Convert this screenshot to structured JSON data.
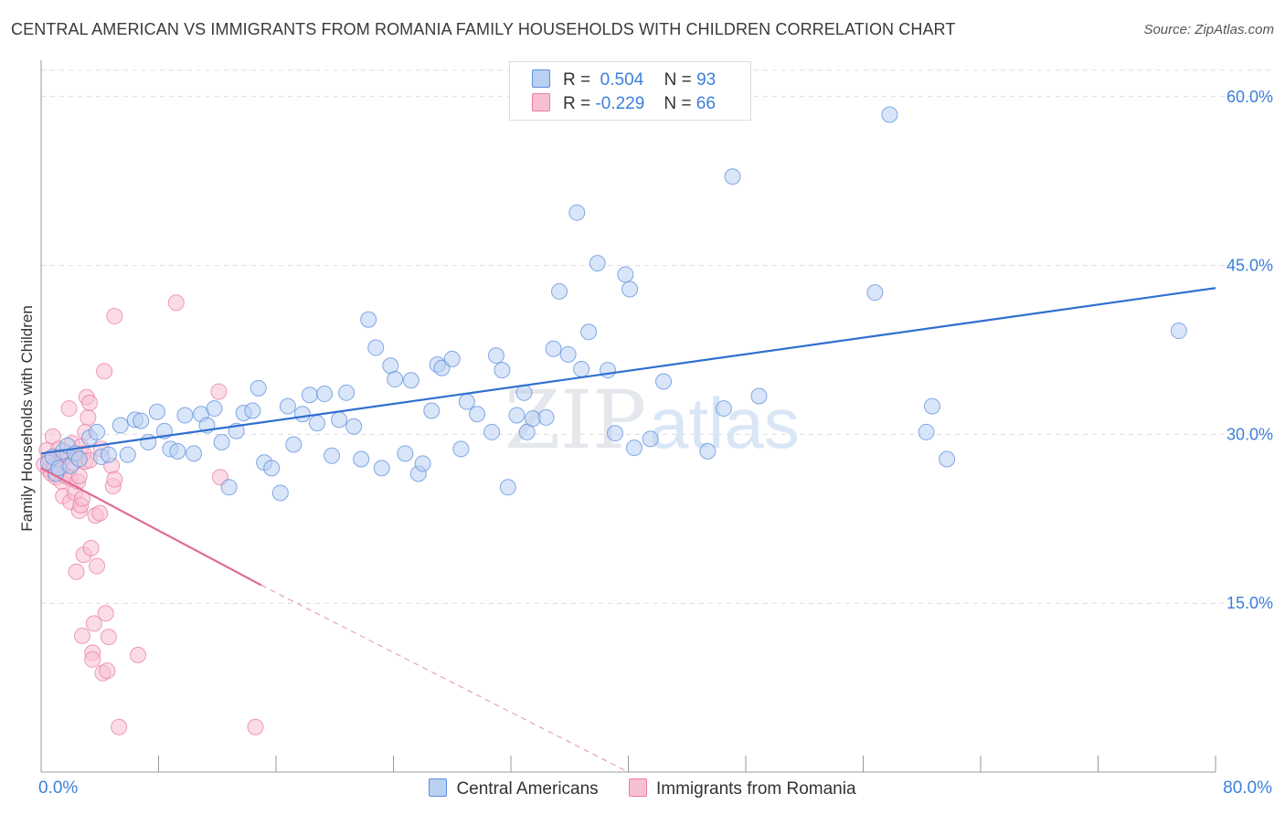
{
  "title": "CENTRAL AMERICAN VS IMMIGRANTS FROM ROMANIA FAMILY HOUSEHOLDS WITH CHILDREN CORRELATION CHART",
  "source": "Source: ZipAtlas.com",
  "watermark": {
    "zip": "ZIP",
    "atlas": "atlas"
  },
  "legend": {
    "r_label": "R =",
    "n_label": "N =",
    "rows": [
      {
        "r": "0.504",
        "n": "93",
        "color": "#5b8fdc",
        "fill": "#b9d0f2"
      },
      {
        "r": "-0.229",
        "n": "66",
        "color": "#e97ca0",
        "fill": "#f7c0d2"
      }
    ]
  },
  "bottom_legend": [
    "Central Americans",
    "Immigrants from Romania"
  ],
  "x_axis": {
    "min_label": "0.0%",
    "max_label": "80.0%"
  },
  "y_axis": {
    "label": "Family Households with Children",
    "ticks": [
      "60.0%",
      "45.0%",
      "30.0%",
      "15.0%"
    ]
  },
  "chart_data": {
    "type": "scatter",
    "title": "CENTRAL AMERICAN VS IMMIGRANTS FROM ROMANIA FAMILY HOUSEHOLDS WITH CHILDREN CORRELATION CHART",
    "xlabel": "",
    "ylabel": "Family Households with Children",
    "xlim": [
      0,
      80
    ],
    "ylim": [
      0,
      62.5
    ],
    "y_ticks": [
      15,
      30,
      45,
      60
    ],
    "x_tick_labels": [
      "0.0%",
      "80.0%"
    ],
    "grid": "horizontal dashed",
    "legend_position": "top-center",
    "series": [
      {
        "name": "Central Americans",
        "color": "#5b8fdc",
        "fill": "#b9d0f2",
        "r": 0.504,
        "n": 93,
        "trend": {
          "x0": 0,
          "y0": 28.3,
          "x1": 80,
          "y1": 43.0,
          "style": "solid"
        },
        "points": [
          [
            0.5,
            27.5
          ],
          [
            0.8,
            28.0
          ],
          [
            1.0,
            26.5
          ],
          [
            1.2,
            27.0
          ],
          [
            1.5,
            28.5
          ],
          [
            1.8,
            29.0
          ],
          [
            2.0,
            27.2
          ],
          [
            2.3,
            28.3
          ],
          [
            2.6,
            27.8
          ],
          [
            3.3,
            29.7
          ],
          [
            3.8,
            30.2
          ],
          [
            4.1,
            28.0
          ],
          [
            4.6,
            28.2
          ],
          [
            5.4,
            30.8
          ],
          [
            5.9,
            28.2
          ],
          [
            6.4,
            31.3
          ],
          [
            6.8,
            31.2
          ],
          [
            7.3,
            29.3
          ],
          [
            7.9,
            32.0
          ],
          [
            8.4,
            30.3
          ],
          [
            8.8,
            28.7
          ],
          [
            9.3,
            28.5
          ],
          [
            9.8,
            31.7
          ],
          [
            10.4,
            28.3
          ],
          [
            10.9,
            31.8
          ],
          [
            11.3,
            30.8
          ],
          [
            11.8,
            32.3
          ],
          [
            12.3,
            29.3
          ],
          [
            12.8,
            25.3
          ],
          [
            13.3,
            30.3
          ],
          [
            13.8,
            31.9
          ],
          [
            14.4,
            32.1
          ],
          [
            14.8,
            34.1
          ],
          [
            15.2,
            27.5
          ],
          [
            15.7,
            27.0
          ],
          [
            16.3,
            24.8
          ],
          [
            16.8,
            32.5
          ],
          [
            17.2,
            29.1
          ],
          [
            17.8,
            31.8
          ],
          [
            18.3,
            33.5
          ],
          [
            18.8,
            31.0
          ],
          [
            19.3,
            33.6
          ],
          [
            19.8,
            28.1
          ],
          [
            20.3,
            31.3
          ],
          [
            20.8,
            33.7
          ],
          [
            21.3,
            30.7
          ],
          [
            21.8,
            27.8
          ],
          [
            22.3,
            40.2
          ],
          [
            22.8,
            37.7
          ],
          [
            23.2,
            27.0
          ],
          [
            23.8,
            36.1
          ],
          [
            24.1,
            34.9
          ],
          [
            24.8,
            28.3
          ],
          [
            25.2,
            34.8
          ],
          [
            25.7,
            26.5
          ],
          [
            26.0,
            27.4
          ],
          [
            26.6,
            32.1
          ],
          [
            27.0,
            36.2
          ],
          [
            27.3,
            35.9
          ],
          [
            28.0,
            36.7
          ],
          [
            28.6,
            28.7
          ],
          [
            29.0,
            32.9
          ],
          [
            29.7,
            31.8
          ],
          [
            30.7,
            30.2
          ],
          [
            31.0,
            37.0
          ],
          [
            31.4,
            35.7
          ],
          [
            31.8,
            25.3
          ],
          [
            32.4,
            31.7
          ],
          [
            32.9,
            33.7
          ],
          [
            33.1,
            30.2
          ],
          [
            33.5,
            31.4
          ],
          [
            34.4,
            31.5
          ],
          [
            34.9,
            37.6
          ],
          [
            35.3,
            42.7
          ],
          [
            35.9,
            37.1
          ],
          [
            36.5,
            49.7
          ],
          [
            36.8,
            35.8
          ],
          [
            37.3,
            39.1
          ],
          [
            37.9,
            45.2
          ],
          [
            38.6,
            35.7
          ],
          [
            39.1,
            30.1
          ],
          [
            39.8,
            44.2
          ],
          [
            40.1,
            42.9
          ],
          [
            40.4,
            28.8
          ],
          [
            41.5,
            29.6
          ],
          [
            42.4,
            34.7
          ],
          [
            45.4,
            28.5
          ],
          [
            46.5,
            32.3
          ],
          [
            47.1,
            52.9
          ],
          [
            48.9,
            33.4
          ],
          [
            56.8,
            42.6
          ],
          [
            57.8,
            58.4
          ],
          [
            60.3,
            30.2
          ],
          [
            60.7,
            32.5
          ],
          [
            61.7,
            27.8
          ],
          [
            77.5,
            39.2
          ]
        ]
      },
      {
        "name": "Immigrants from Romania",
        "color": "#e97ca0",
        "fill": "#f7c0d2",
        "r": -0.229,
        "n": 66,
        "trend": {
          "x0": 0,
          "y0": 27.0,
          "x1": 15,
          "y1": 16.6,
          "style": "solid",
          "extend_to": [
            40,
            0
          ],
          "extend_style": "dashed"
        },
        "points": [
          [
            0.2,
            27.3
          ],
          [
            0.4,
            28.6
          ],
          [
            0.5,
            26.9
          ],
          [
            0.6,
            27.8
          ],
          [
            0.7,
            26.5
          ],
          [
            0.8,
            29.8
          ],
          [
            0.9,
            27.2
          ],
          [
            1.0,
            26.2
          ],
          [
            1.1,
            28.0
          ],
          [
            1.2,
            28.7
          ],
          [
            1.3,
            27.5
          ],
          [
            1.3,
            26.8
          ],
          [
            1.4,
            25.8
          ],
          [
            1.5,
            24.5
          ],
          [
            1.6,
            27.9
          ],
          [
            1.7,
            26.3
          ],
          [
            1.8,
            28.2
          ],
          [
            1.9,
            32.3
          ],
          [
            2.0,
            24.0
          ],
          [
            2.0,
            26.1
          ],
          [
            2.1,
            29.2
          ],
          [
            2.2,
            27.5
          ],
          [
            2.3,
            24.8
          ],
          [
            2.4,
            28.0
          ],
          [
            2.4,
            17.8
          ],
          [
            2.5,
            25.8
          ],
          [
            2.6,
            23.2
          ],
          [
            2.6,
            26.3
          ],
          [
            2.7,
            23.7
          ],
          [
            2.7,
            28.9
          ],
          [
            2.8,
            24.3
          ],
          [
            2.8,
            12.1
          ],
          [
            2.9,
            19.3
          ],
          [
            2.9,
            28.3
          ],
          [
            3.0,
            30.2
          ],
          [
            3.0,
            27.6
          ],
          [
            3.1,
            33.3
          ],
          [
            3.2,
            31.5
          ],
          [
            3.3,
            32.8
          ],
          [
            3.3,
            27.7
          ],
          [
            3.4,
            19.9
          ],
          [
            3.5,
            10.6
          ],
          [
            3.5,
            10.0
          ],
          [
            3.6,
            13.2
          ],
          [
            3.7,
            22.8
          ],
          [
            3.8,
            18.3
          ],
          [
            4.0,
            23.0
          ],
          [
            4.1,
            28.7
          ],
          [
            4.2,
            8.8
          ],
          [
            4.3,
            35.6
          ],
          [
            4.4,
            14.1
          ],
          [
            4.5,
            9.0
          ],
          [
            4.6,
            12.0
          ],
          [
            4.8,
            27.2
          ],
          [
            4.9,
            25.4
          ],
          [
            5.0,
            26.0
          ],
          [
            5.0,
            40.5
          ],
          [
            5.3,
            4.0
          ],
          [
            6.6,
            10.4
          ],
          [
            9.2,
            41.7
          ],
          [
            12.1,
            33.8
          ],
          [
            12.2,
            26.2
          ],
          [
            14.6,
            4.0
          ]
        ]
      }
    ]
  }
}
